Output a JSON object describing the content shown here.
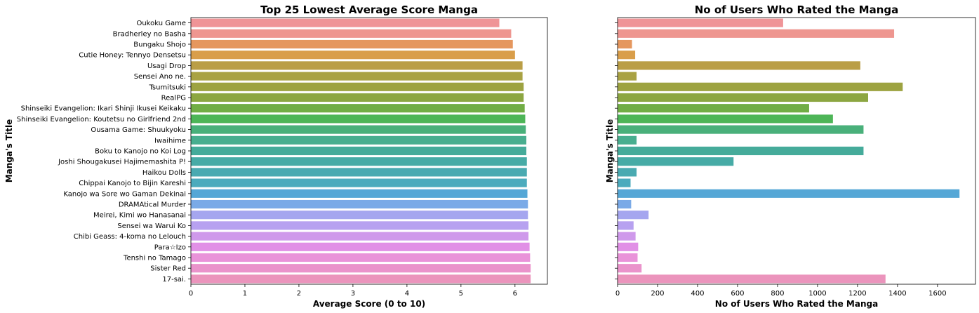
{
  "chart_data": [
    {
      "type": "bar",
      "orientation": "horizontal",
      "title": "Top 25 Lowest Average Score Manga",
      "xlabel": "Average Score (0 to 10)",
      "ylabel": "Manga's Title",
      "xlim": [
        0,
        6.6
      ],
      "xticks": [
        0,
        1,
        2,
        3,
        4,
        5,
        6
      ],
      "grid": false,
      "categories": [
        "Oukoku Game",
        "Bradherley no Basha",
        "Bungaku Shojo",
        "Cutie Honey: Tennyo Densetsu",
        "Usagi Drop",
        "Sensei Ano ne.",
        "Tsumitsuki",
        "RealPG",
        "Shinseiki Evangelion: Ikari Shinji Ikusei Keikaku",
        "Shinseiki Evangelion: Koutetsu no Girlfriend 2nd",
        "Ousama Game: Shuukyoku",
        "Iwaihime",
        "Boku to Kanojo no Koi Log",
        "Joshi Shougakusei Hajimemashita P!",
        "Haikou Dolls",
        "Chippai Kanojo to Bijin Kareshi",
        "Kanojo wa Sore wo Gaman Dekinai",
        "DRAMAtical Murder",
        "Meirei, Kimi wo Hanasanai",
        "Sensei wa Warui Ko",
        "Chibi Geass: 4-koma no Lelouch",
        "Para☆Izo",
        "Tenshi no Tamago",
        "Sister Red",
        "17-sai."
      ],
      "values": [
        5.71,
        5.93,
        5.96,
        6.0,
        6.14,
        6.14,
        6.16,
        6.16,
        6.18,
        6.19,
        6.2,
        6.21,
        6.21,
        6.22,
        6.22,
        6.22,
        6.23,
        6.24,
        6.24,
        6.25,
        6.25,
        6.27,
        6.28,
        6.29,
        6.29
      ]
    },
    {
      "type": "bar",
      "orientation": "horizontal",
      "title": "No of Users Who Rated the Manga",
      "xlabel": "No of Users Who Rated the Manga",
      "ylabel": "Manga's Title",
      "xlim": [
        0,
        1790
      ],
      "xticks": [
        0,
        200,
        400,
        600,
        800,
        1000,
        1200,
        1400,
        1600
      ],
      "grid": false,
      "values": [
        828,
        1383,
        72,
        88,
        1214,
        95,
        1426,
        1253,
        958,
        1077,
        1230,
        95,
        1230,
        580,
        95,
        65,
        1710,
        68,
        155,
        80,
        90,
        103,
        100,
        120,
        1340
      ]
    }
  ],
  "colors": [
    "#ef9497",
    "#ee9690",
    "#e5975e",
    "#d99e4a",
    "#ba9e46",
    "#a9a243",
    "#9da341",
    "#8ca641",
    "#71ad45",
    "#4db557",
    "#49b07a",
    "#48ae8f",
    "#45ab9a",
    "#47aba6",
    "#4aaab1",
    "#4cabbd",
    "#55a7d6",
    "#7aaae7",
    "#a5a6ef",
    "#b7a1f0",
    "#cf99eb",
    "#e190e6",
    "#e993d9",
    "#ea93cb",
    "#eb94bc"
  ]
}
